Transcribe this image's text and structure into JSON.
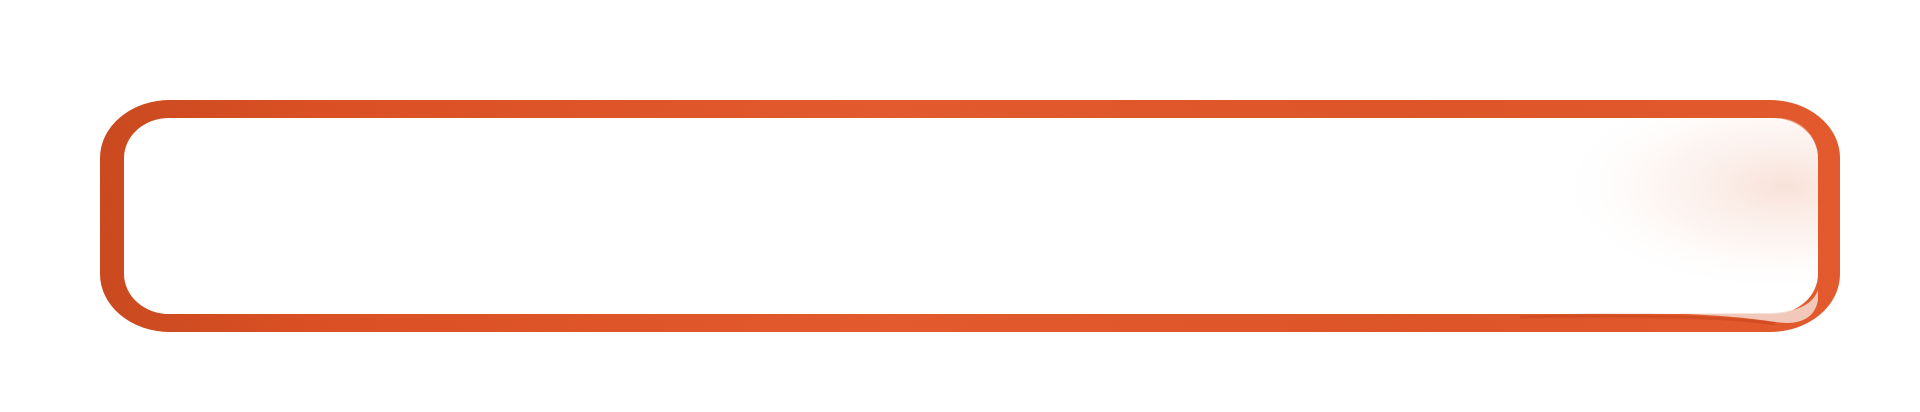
{
  "banner": {
    "shape": "rounded-rectangle-frame",
    "style": "hand-painted watercolor outline with curled bottom-right corner",
    "colors": {
      "frame_primary": "#E2552A",
      "frame_shadow": "#C8431B",
      "inner_fill": "#FFFFFF",
      "corner_tint": "#F6D8CC",
      "background": "#FFFFFF"
    }
  }
}
